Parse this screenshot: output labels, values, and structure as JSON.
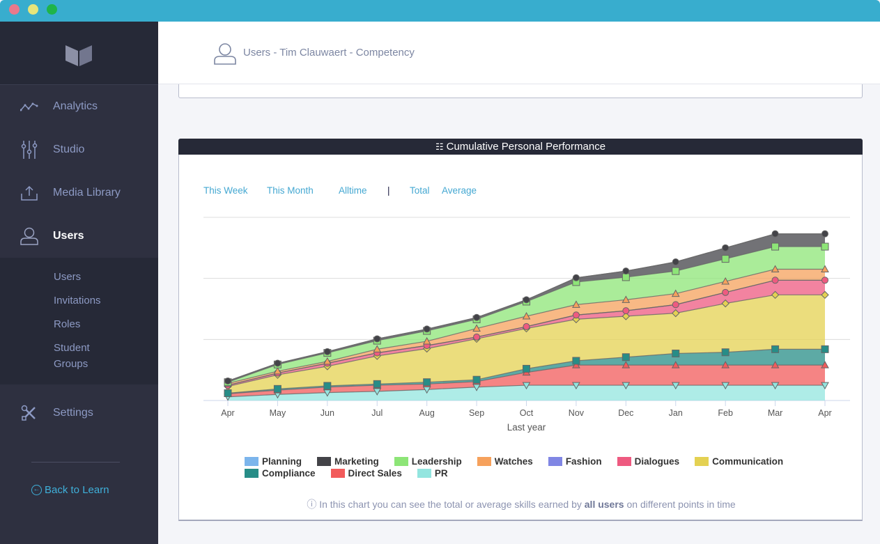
{
  "window": {
    "controls": [
      "close",
      "minimize",
      "maximize"
    ]
  },
  "sidebar": {
    "logo": "book-logo",
    "items": [
      {
        "label": "Analytics",
        "icon": "analytics-icon"
      },
      {
        "label": "Studio",
        "icon": "sliders-icon"
      },
      {
        "label": "Media Library",
        "icon": "upload-icon"
      },
      {
        "label": "Users",
        "icon": "user-icon",
        "active": true
      }
    ],
    "subitems": [
      "Users",
      "Invitations",
      "Roles",
      "Student Groups"
    ],
    "settings": {
      "label": "Settings",
      "icon": "tools-icon"
    },
    "back": "Back to Learn"
  },
  "header": {
    "title": "Users - Tim Clauwaert - Competency"
  },
  "card": {
    "title": "Cumulative Personal Performance",
    "filters": [
      "This Week",
      "This Month",
      "Alltime",
      "|",
      "Total",
      "Average"
    ],
    "note_pre": "In this chart you can see the total or average skills earned by ",
    "note_bold": "all users",
    "note_post": " on different points in time"
  },
  "chart_data": {
    "type": "area",
    "stacked": true,
    "title": "Cumulative Personal Performance",
    "xlabel": "Last year",
    "ylabel": "",
    "ylim": [
      0,
      30
    ],
    "grid": true,
    "legend_position": "bottom",
    "categories": [
      "Apr",
      "May",
      "Jun",
      "Jul",
      "Aug",
      "Sep",
      "Oct",
      "Nov",
      "Dec",
      "Jan",
      "Feb",
      "Mar",
      "Apr"
    ],
    "series": [
      {
        "name": "PR",
        "color": "#93e5df",
        "marker": "triangle-down",
        "values": [
          0.6,
          1.0,
          1.3,
          1.5,
          1.8,
          2.2,
          2.5,
          2.5,
          2.5,
          2.5,
          2.5,
          2.5,
          2.5
        ]
      },
      {
        "name": "Direct Sales",
        "color": "#f25b5b",
        "marker": "triangle",
        "values": [
          0.5,
          0.7,
          0.9,
          1.0,
          0.9,
          0.9,
          2.1,
          3.3,
          3.3,
          3.3,
          3.3,
          3.3,
          3.3
        ]
      },
      {
        "name": "Compliance",
        "color": "#278d87",
        "marker": "square",
        "values": [
          0.1,
          0.2,
          0.2,
          0.2,
          0.3,
          0.3,
          0.6,
          0.7,
          1.3,
          1.9,
          2.1,
          2.6,
          2.6
        ]
      },
      {
        "name": "Communication",
        "color": "#e4d152",
        "marker": "diamond",
        "values": [
          1.1,
          2.3,
          3.2,
          4.6,
          5.5,
          6.7,
          6.6,
          6.8,
          6.7,
          6.6,
          8.0,
          8.9,
          8.9
        ]
      },
      {
        "name": "Dialogues",
        "color": "#ee5a80",
        "marker": "circle",
        "values": [
          0.2,
          0.3,
          0.5,
          0.5,
          0.5,
          0.3,
          0.3,
          0.7,
          0.9,
          1.4,
          1.8,
          2.4,
          2.4
        ]
      },
      {
        "name": "Fashion",
        "color": "#8086e4",
        "marker": "none",
        "values": [
          0,
          0,
          0,
          0,
          0,
          0,
          0,
          0,
          0,
          0,
          0,
          0,
          0
        ]
      },
      {
        "name": "Watches",
        "color": "#f6a15c",
        "marker": "triangle",
        "values": [
          0.3,
          0.3,
          0.3,
          0.6,
          0.7,
          1.4,
          1.7,
          1.7,
          1.8,
          1.8,
          1.8,
          1.8,
          1.8
        ]
      },
      {
        "name": "Leadership",
        "color": "#8de577",
        "marker": "square",
        "values": [
          0.2,
          1.1,
          1.4,
          1.4,
          1.7,
          1.5,
          2.4,
          3.7,
          3.7,
          3.7,
          3.7,
          3.7,
          3.7
        ]
      },
      {
        "name": "Marketing",
        "color": "#434348",
        "marker": "circle",
        "values": [
          0.2,
          0.2,
          0.2,
          0.3,
          0.3,
          0.3,
          0.3,
          0.7,
          1.0,
          1.5,
          1.8,
          2.1,
          2.1
        ]
      },
      {
        "name": "Planning",
        "color": "#7cb5ec",
        "marker": "none",
        "values": [
          0,
          0,
          0,
          0,
          0,
          0,
          0,
          0,
          0,
          0,
          0,
          0,
          0
        ]
      }
    ],
    "legend_order": [
      "Planning",
      "Marketing",
      "Leadership",
      "Watches",
      "Fashion",
      "Dialogues",
      "Communication",
      "Compliance",
      "Direct Sales",
      "PR"
    ]
  }
}
